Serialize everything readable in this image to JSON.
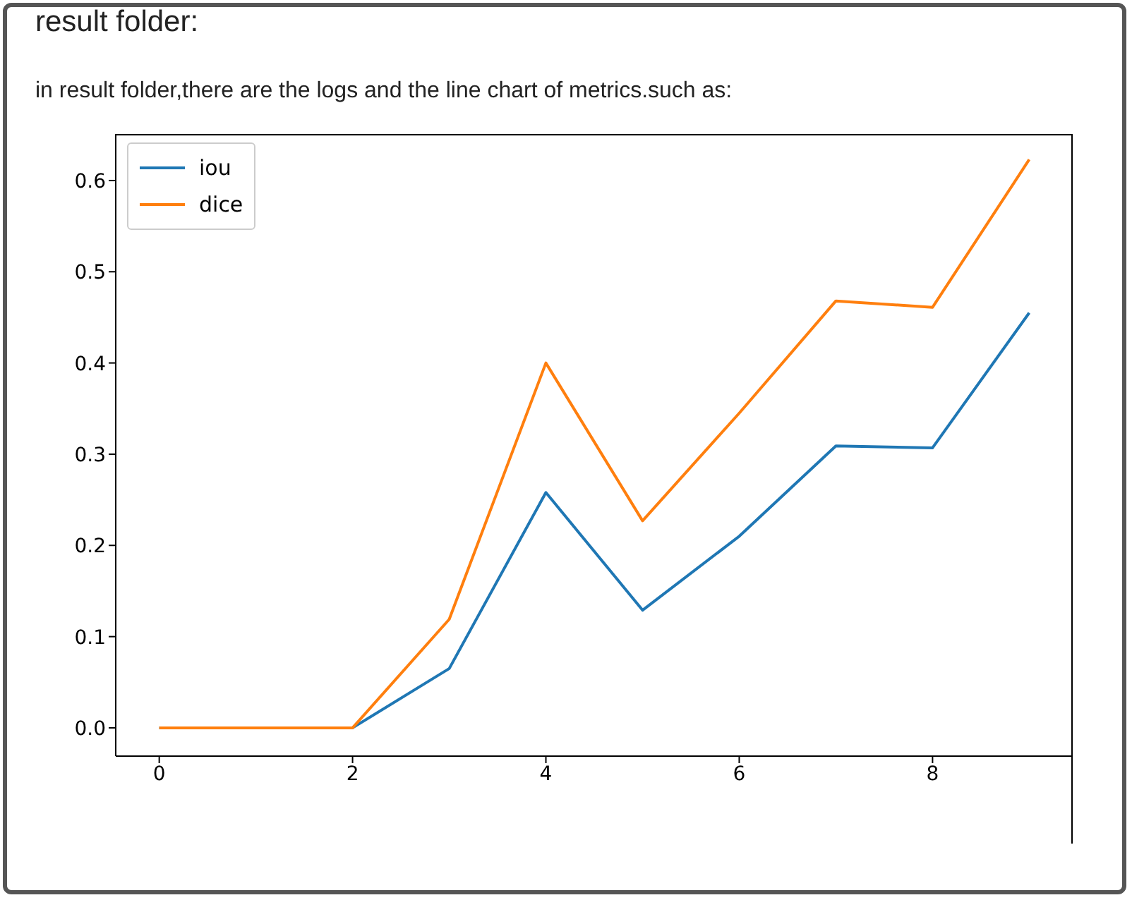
{
  "chart_data": {
    "type": "line",
    "title": "result folder:",
    "subtitle": "in result folder,there are the logs and the line chart of metrics.such as:",
    "x": [
      0,
      1,
      2,
      3,
      4,
      5,
      6,
      7,
      8,
      9
    ],
    "series": [
      {
        "name": "iou",
        "color": "#1f77b4",
        "values": [
          0,
          0,
          0,
          0.065,
          0.258,
          0.129,
          0.21,
          0.309,
          0.307,
          0.455
        ]
      },
      {
        "name": "dice",
        "color": "#ff7f0e",
        "values": [
          0,
          0,
          0,
          0.119,
          0.4,
          0.227,
          0.345,
          0.468,
          0.461,
          0.623
        ]
      }
    ],
    "xlim": [
      -0.45,
      9.45
    ],
    "xticks": [
      0,
      2,
      4,
      6,
      8
    ],
    "ylim": [
      -0.031,
      0.651
    ],
    "yticks": [
      {
        "value": 0,
        "label": "0.0"
      },
      0.1,
      0.2,
      0.3,
      0.4,
      0.5,
      0.6
    ],
    "legend": "top left",
    "grid": false,
    "marker": "none",
    "line_style": "solid"
  }
}
